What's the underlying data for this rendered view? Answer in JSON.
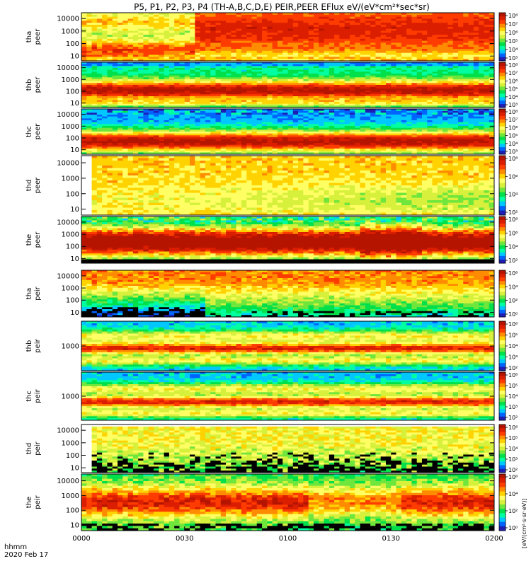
{
  "chart_data": {
    "type": "heatmap",
    "title": "P5, P1, P2, P3, P4 (TH-A,B,C,D,E) PEIR,PEER EFlux eV/(eV*cm²*sec*sr)",
    "x_axis": {
      "ticks": [
        "0000",
        "0030",
        "0100",
        "0130",
        "0200"
      ],
      "row_label": "hhmm",
      "date_label": "2020 Feb 17",
      "range": [
        "00:00",
        "02:00"
      ]
    },
    "colorbar_label": "[eV/(cm²·s·sr·eV)]",
    "panels": [
      {
        "label_top": "tha",
        "label_bottom": "peer",
        "yticks": [
          "10000",
          "1000",
          "100",
          "10"
        ],
        "y_log": true,
        "cbar_ticks": [
          "10⁸",
          "10⁷",
          "10⁶",
          "10⁵",
          "10⁴",
          "10³"
        ]
      },
      {
        "label_top": "thb",
        "label_bottom": "peer",
        "yticks": [
          "10000",
          "1000",
          "100",
          "10"
        ],
        "y_log": true,
        "cbar_ticks": [
          "10⁸",
          "10⁷",
          "10⁶",
          "10⁵",
          "10⁴",
          "10³"
        ]
      },
      {
        "label_top": "thc",
        "label_bottom": "peer",
        "yticks": [
          "10000",
          "1000",
          "100",
          "10"
        ],
        "y_log": true,
        "cbar_ticks": [
          "10⁸",
          "10⁷",
          "10⁶",
          "10⁵",
          "10⁴",
          "10³"
        ]
      },
      {
        "label_top": "thd",
        "label_bottom": "peer",
        "yticks": [
          "10000",
          "1000",
          "100",
          "10"
        ],
        "y_log": true,
        "cbar_ticks": [
          "10⁸",
          "10⁶",
          "10⁴",
          "10²"
        ]
      },
      {
        "label_top": "the",
        "label_bottom": "peer",
        "yticks": [
          "10000",
          "1000",
          "100",
          "10"
        ],
        "y_log": true,
        "cbar_ticks": [
          "10⁸",
          "10⁶",
          "10⁴",
          "10²"
        ]
      },
      {
        "label_top": "tha",
        "label_bottom": "peir",
        "yticks": [
          "10000",
          "1000",
          "100",
          "10"
        ],
        "y_log": true,
        "cbar_ticks": [
          "10⁶",
          "10⁴",
          "10²",
          "10⁰"
        ]
      },
      {
        "label_top": "thb",
        "label_bottom": "peir",
        "yticks": [
          "1000"
        ],
        "y_log": true,
        "cbar_ticks": [
          "10⁶",
          "10⁵",
          "10⁴",
          "10³",
          "10²"
        ]
      },
      {
        "label_top": "thc",
        "label_bottom": "peir",
        "yticks": [
          "1000"
        ],
        "y_log": true,
        "cbar_ticks": [
          "10⁶",
          "10⁵",
          "10⁴",
          "10³",
          "10²"
        ]
      },
      {
        "label_top": "thd",
        "label_bottom": "peir",
        "yticks": [
          "10000",
          "1000",
          "100",
          "10"
        ],
        "y_log": true,
        "cbar_ticks": [
          "10⁶",
          "10⁵",
          "10⁴",
          "10³",
          "10²"
        ]
      },
      {
        "label_top": "the",
        "label_bottom": "peir",
        "yticks": [
          "10000",
          "1000",
          "100",
          "10"
        ],
        "y_log": true,
        "cbar_ticks": [
          "10⁶",
          "10⁴",
          "10²",
          "10⁰"
        ]
      }
    ]
  },
  "colormap": [
    "#000000",
    "#1e1eb4",
    "#0064ff",
    "#00c8ff",
    "#00ffa0",
    "#00e04a",
    "#6ee63c",
    "#d6f03c",
    "#ffff64",
    "#ffd200",
    "#ff8c00",
    "#ff3c00",
    "#dc1e00",
    "#b41400"
  ]
}
